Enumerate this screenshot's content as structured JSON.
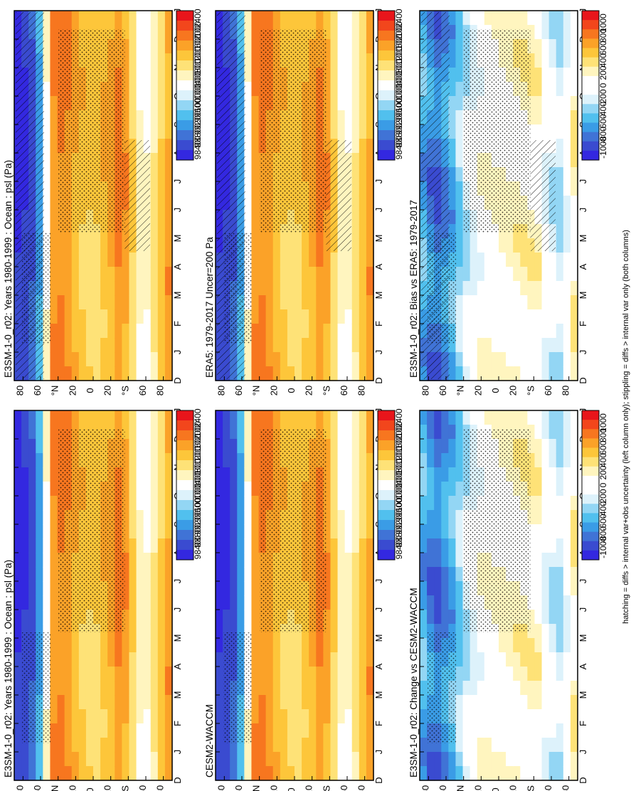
{
  "footer": "hatching = diffs > internal var+obs uncertainty (left column only); stippling = diffs > internal var only (both columns)",
  "chart_data": [
    {
      "type": "heatmap",
      "title": "E3SM-1-0_r02: Years 1980-1999 : Ocean : psl (Pa)",
      "kind": "abs",
      "hatch": true,
      "stipple": true
    },
    {
      "type": "heatmap",
      "title": "ERA5: 1979-2017 Uncer=200 Pa",
      "kind": "abs",
      "hatch": true,
      "stipple": true
    },
    {
      "type": "heatmap",
      "title": "E3SM-1-0_r02: Bias vs ERA5: 1979-2017",
      "kind": "diff",
      "hatch": true,
      "stipple": true
    },
    {
      "type": "heatmap",
      "title": "E3SM-1-0_r02: Years 1980-1999 : Ocean : psl (Pa)",
      "kind": "abs",
      "hatch": false,
      "stipple": true
    },
    {
      "type": "heatmap",
      "title": "CESM2-WACCM",
      "kind": "abs",
      "hatch": false,
      "stipple": true
    },
    {
      "type": "heatmap",
      "title": "E3SM-1-0_r02: Change vs CESM2-WACCM",
      "kind": "diff",
      "hatch": false,
      "stipple": true
    }
  ],
  "axes": {
    "x_ticks": [
      "D",
      "J",
      "F",
      "M",
      "A",
      "M",
      "J",
      "J",
      "A",
      "S",
      "O",
      "N",
      "D",
      "J"
    ],
    "y_ticks": [
      "80",
      "60",
      "°N",
      "20",
      "0",
      "20",
      "°S",
      "60",
      "80"
    ]
  },
  "colorbars": {
    "abs": {
      "labels": [
        "102400",
        "102000",
        "101600",
        "101200",
        "100800",
        "100400",
        "100000",
        "99600",
        "99200",
        "98800",
        "98400"
      ],
      "colors": [
        "#e8151b",
        "#f2461c",
        "#f7761f",
        "#fba228",
        "#fdc63a",
        "#fee277",
        "#fff5bf",
        "#ffffff",
        "#ddf2fb",
        "#93d6f4",
        "#51c0ee",
        "#3a9ce6",
        "#4073d6",
        "#3a4bd0",
        "#3328e0"
      ]
    },
    "diff": {
      "labels": [
        "1000",
        "800",
        "600",
        "400",
        "200",
        "0",
        "-200",
        "-400",
        "-600",
        "-800",
        "-1000"
      ],
      "colors": [
        "#e8151b",
        "#f2461c",
        "#f7761f",
        "#fba228",
        "#fdc63a",
        "#fee277",
        "#fff5bf",
        "#ffffff",
        "#ffffff",
        "#ddf2fb",
        "#93d6f4",
        "#51c0ee",
        "#3a9ce6",
        "#4073d6",
        "#3a4bd0",
        "#3328e0"
      ]
    }
  }
}
